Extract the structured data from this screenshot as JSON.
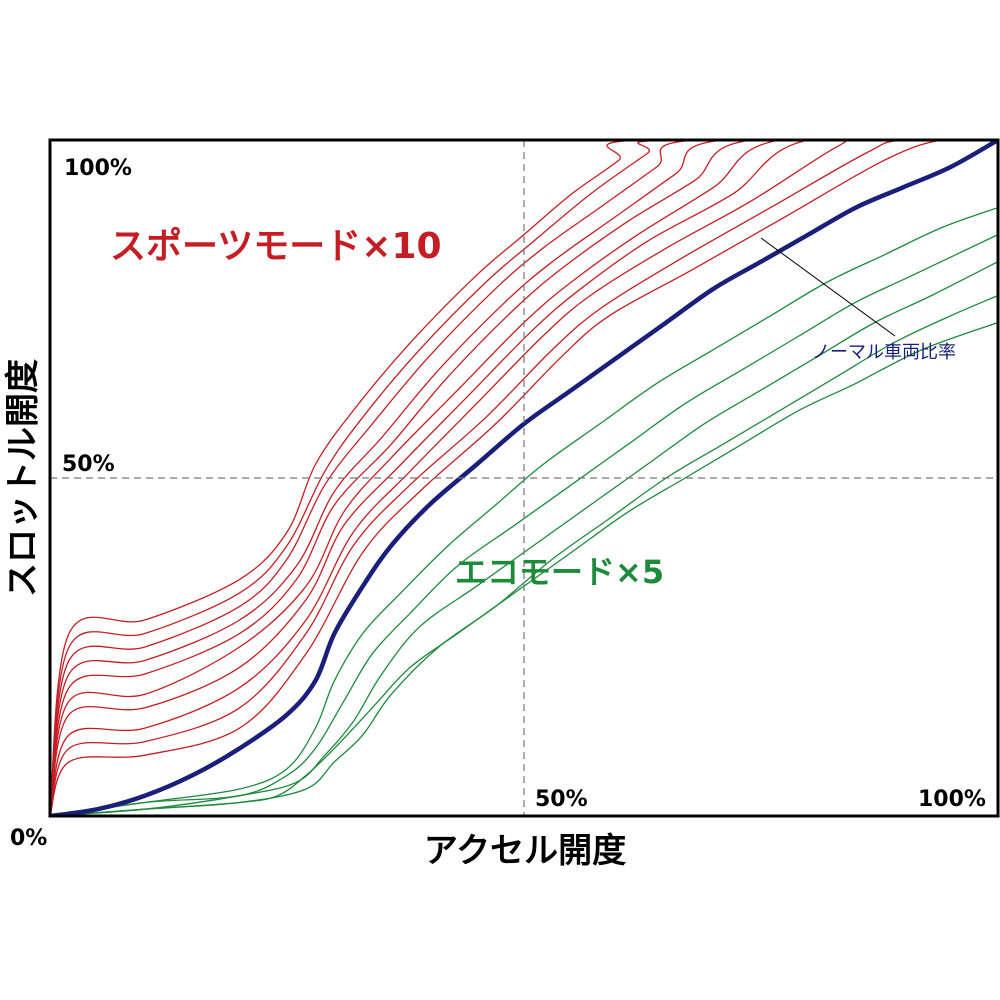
{
  "chart_data": {
    "type": "line",
    "xlabel": "アクセル開度",
    "ylabel": "スロットル開度",
    "xlim": [
      0,
      100
    ],
    "ylim": [
      0,
      100
    ],
    "ticks": {
      "origin": "0%",
      "x_mid": "50%",
      "x_max": "100%",
      "y_mid": "50%",
      "y_max": "100%"
    },
    "reference_lines": {
      "x": 50,
      "y": 50,
      "style": "dashed"
    },
    "annotations": {
      "sport": "スポーツモード×10",
      "eco": "エコモード×5",
      "normal": "ノーマル車両比率"
    },
    "colors": {
      "sport": "#c41e24",
      "eco": "#1e8a3c",
      "normal": "#1a1f7a",
      "frame": "#000000",
      "grid": "#777777"
    },
    "series": [
      {
        "group": "sport",
        "values": [
          [
            0,
            0
          ],
          [
            2,
            27
          ],
          [
            10,
            29
          ],
          [
            20,
            35
          ],
          [
            25,
            42
          ],
          [
            28,
            52
          ],
          [
            32,
            60
          ],
          [
            38,
            70
          ],
          [
            45,
            80
          ],
          [
            50,
            86
          ],
          [
            55,
            92
          ],
          [
            60,
            97
          ],
          [
            62,
            100
          ],
          [
            100,
            100
          ]
        ]
      },
      {
        "group": "sport",
        "values": [
          [
            0,
            0
          ],
          [
            2,
            25
          ],
          [
            10,
            27
          ],
          [
            20,
            33
          ],
          [
            25,
            40
          ],
          [
            29,
            51
          ],
          [
            33,
            59
          ],
          [
            39,
            69
          ],
          [
            46,
            79
          ],
          [
            51,
            85
          ],
          [
            57,
            92
          ],
          [
            63,
            98
          ],
          [
            65,
            100
          ],
          [
            100,
            100
          ]
        ]
      },
      {
        "group": "sport",
        "values": [
          [
            0,
            0
          ],
          [
            2,
            23
          ],
          [
            10,
            25
          ],
          [
            20,
            31
          ],
          [
            25,
            38
          ],
          [
            29,
            49
          ],
          [
            34,
            58
          ],
          [
            40,
            68
          ],
          [
            47,
            78
          ],
          [
            52,
            84
          ],
          [
            58,
            90
          ],
          [
            64,
            96
          ],
          [
            68,
            100
          ],
          [
            100,
            100
          ]
        ]
      },
      {
        "group": "sport",
        "values": [
          [
            0,
            0
          ],
          [
            2,
            21
          ],
          [
            10,
            23
          ],
          [
            20,
            29
          ],
          [
            26,
            37
          ],
          [
            30,
            48
          ],
          [
            35,
            56
          ],
          [
            41,
            66
          ],
          [
            48,
            76
          ],
          [
            53,
            82
          ],
          [
            60,
            89
          ],
          [
            66,
            95
          ],
          [
            71,
            100
          ],
          [
            100,
            100
          ]
        ]
      },
      {
        "group": "sport",
        "values": [
          [
            0,
            0
          ],
          [
            2,
            19
          ],
          [
            10,
            21
          ],
          [
            20,
            27
          ],
          [
            26,
            35
          ],
          [
            30,
            46
          ],
          [
            36,
            55
          ],
          [
            42,
            65
          ],
          [
            49,
            75
          ],
          [
            54,
            81
          ],
          [
            61,
            88
          ],
          [
            68,
            94
          ],
          [
            74,
            100
          ],
          [
            100,
            100
          ]
        ]
      },
      {
        "group": "sport",
        "values": [
          [
            0,
            0
          ],
          [
            2,
            17
          ],
          [
            10,
            18
          ],
          [
            20,
            25
          ],
          [
            27,
            34
          ],
          [
            31,
            45
          ],
          [
            36,
            53
          ],
          [
            43,
            63
          ],
          [
            50,
            73
          ],
          [
            55,
            79
          ],
          [
            62,
            86
          ],
          [
            70,
            93
          ],
          [
            77,
            100
          ],
          [
            100,
            100
          ]
        ]
      },
      {
        "group": "sport",
        "values": [
          [
            0,
            0
          ],
          [
            2,
            15
          ],
          [
            10,
            16
          ],
          [
            20,
            22
          ],
          [
            27,
            32
          ],
          [
            31,
            43
          ],
          [
            37,
            52
          ],
          [
            44,
            62
          ],
          [
            51,
            72
          ],
          [
            56,
            78
          ],
          [
            63,
            85
          ],
          [
            72,
            92
          ],
          [
            80,
            100
          ],
          [
            100,
            100
          ]
        ]
      },
      {
        "group": "sport",
        "values": [
          [
            0,
            0
          ],
          [
            2,
            12
          ],
          [
            10,
            13
          ],
          [
            20,
            19
          ],
          [
            27,
            29
          ],
          [
            32,
            42
          ],
          [
            38,
            51
          ],
          [
            45,
            61
          ],
          [
            52,
            71
          ],
          [
            57,
            77
          ],
          [
            65,
            84
          ],
          [
            74,
            91
          ],
          [
            83,
            99
          ],
          [
            86,
            100
          ],
          [
            100,
            100
          ]
        ]
      },
      {
        "group": "sport",
        "values": [
          [
            0,
            0
          ],
          [
            2,
            10
          ],
          [
            10,
            11
          ],
          [
            20,
            16
          ],
          [
            27,
            27
          ],
          [
            32,
            40
          ],
          [
            38,
            49
          ],
          [
            46,
            59
          ],
          [
            53,
            69
          ],
          [
            58,
            75
          ],
          [
            66,
            82
          ],
          [
            76,
            90
          ],
          [
            86,
            98
          ],
          [
            90,
            100
          ],
          [
            100,
            100
          ]
        ]
      },
      {
        "group": "sport",
        "values": [
          [
            0,
            0
          ],
          [
            2,
            8
          ],
          [
            10,
            9
          ],
          [
            20,
            13
          ],
          [
            27,
            24
          ],
          [
            33,
            39
          ],
          [
            39,
            48
          ],
          [
            47,
            58
          ],
          [
            54,
            68
          ],
          [
            59,
            74
          ],
          [
            68,
            81
          ],
          [
            78,
            89
          ],
          [
            88,
            97
          ],
          [
            94,
            100
          ],
          [
            100,
            100
          ]
        ]
      },
      {
        "group": "normal",
        "values": [
          [
            0,
            0
          ],
          [
            5,
            1
          ],
          [
            10,
            3
          ],
          [
            15,
            6
          ],
          [
            20,
            10
          ],
          [
            25,
            15
          ],
          [
            28,
            20
          ],
          [
            30,
            27
          ],
          [
            33,
            34
          ],
          [
            36,
            40
          ],
          [
            40,
            46
          ],
          [
            45,
            52
          ],
          [
            50,
            58
          ],
          [
            55,
            63
          ],
          [
            60,
            68
          ],
          [
            65,
            73
          ],
          [
            70,
            78
          ],
          [
            75,
            82
          ],
          [
            80,
            86
          ],
          [
            85,
            90
          ],
          [
            90,
            93
          ],
          [
            95,
            96
          ],
          [
            100,
            100
          ]
        ]
      },
      {
        "group": "eco",
        "values": [
          [
            0,
            0
          ],
          [
            10,
            2
          ],
          [
            20,
            4
          ],
          [
            25,
            7
          ],
          [
            28,
            13
          ],
          [
            30,
            20
          ],
          [
            33,
            27
          ],
          [
            37,
            33
          ],
          [
            42,
            40
          ],
          [
            47,
            46
          ],
          [
            52,
            52
          ],
          [
            58,
            58
          ],
          [
            64,
            64
          ],
          [
            70,
            69
          ],
          [
            76,
            74
          ],
          [
            82,
            79
          ],
          [
            88,
            83
          ],
          [
            94,
            87
          ],
          [
            100,
            90
          ]
        ]
      },
      {
        "group": "eco",
        "values": [
          [
            0,
            0
          ],
          [
            10,
            2
          ],
          [
            20,
            3
          ],
          [
            25,
            6
          ],
          [
            28,
            10
          ],
          [
            31,
            17
          ],
          [
            34,
            24
          ],
          [
            38,
            30
          ],
          [
            43,
            37
          ],
          [
            49,
            43
          ],
          [
            55,
            49
          ],
          [
            61,
            55
          ],
          [
            67,
            61
          ],
          [
            73,
            66
          ],
          [
            79,
            71
          ],
          [
            85,
            76
          ],
          [
            91,
            80
          ],
          [
            100,
            86
          ]
        ]
      },
      {
        "group": "eco",
        "values": [
          [
            0,
            0
          ],
          [
            10,
            1
          ],
          [
            20,
            3
          ],
          [
            26,
            5
          ],
          [
            29,
            9
          ],
          [
            32,
            14
          ],
          [
            35,
            21
          ],
          [
            39,
            28
          ],
          [
            45,
            34
          ],
          [
            51,
            40
          ],
          [
            57,
            46
          ],
          [
            63,
            52
          ],
          [
            69,
            58
          ],
          [
            75,
            63
          ],
          [
            81,
            68
          ],
          [
            87,
            73
          ],
          [
            93,
            77
          ],
          [
            100,
            82
          ]
        ]
      },
      {
        "group": "eco",
        "values": [
          [
            0,
            0
          ],
          [
            10,
            1
          ],
          [
            20,
            2
          ],
          [
            27,
            4
          ],
          [
            30,
            8
          ],
          [
            33,
            12
          ],
          [
            36,
            18
          ],
          [
            41,
            25
          ],
          [
            47,
            31
          ],
          [
            53,
            38
          ],
          [
            59,
            44
          ],
          [
            65,
            50
          ],
          [
            71,
            55
          ],
          [
            77,
            60
          ],
          [
            83,
            65
          ],
          [
            89,
            70
          ],
          [
            95,
            74
          ],
          [
            100,
            77
          ]
        ]
      },
      {
        "group": "eco",
        "values": [
          [
            0,
            0
          ],
          [
            10,
            1
          ],
          [
            20,
            2
          ],
          [
            24,
            3
          ],
          [
            27,
            6
          ],
          [
            30,
            10
          ],
          [
            34,
            16
          ],
          [
            38,
            22
          ],
          [
            43,
            27
          ],
          [
            49,
            33
          ],
          [
            55,
            39
          ],
          [
            61,
            45
          ],
          [
            67,
            50
          ],
          [
            73,
            55
          ],
          [
            79,
            60
          ],
          [
            85,
            64
          ],
          [
            92,
            69
          ],
          [
            100,
            73
          ]
        ]
      }
    ]
  }
}
